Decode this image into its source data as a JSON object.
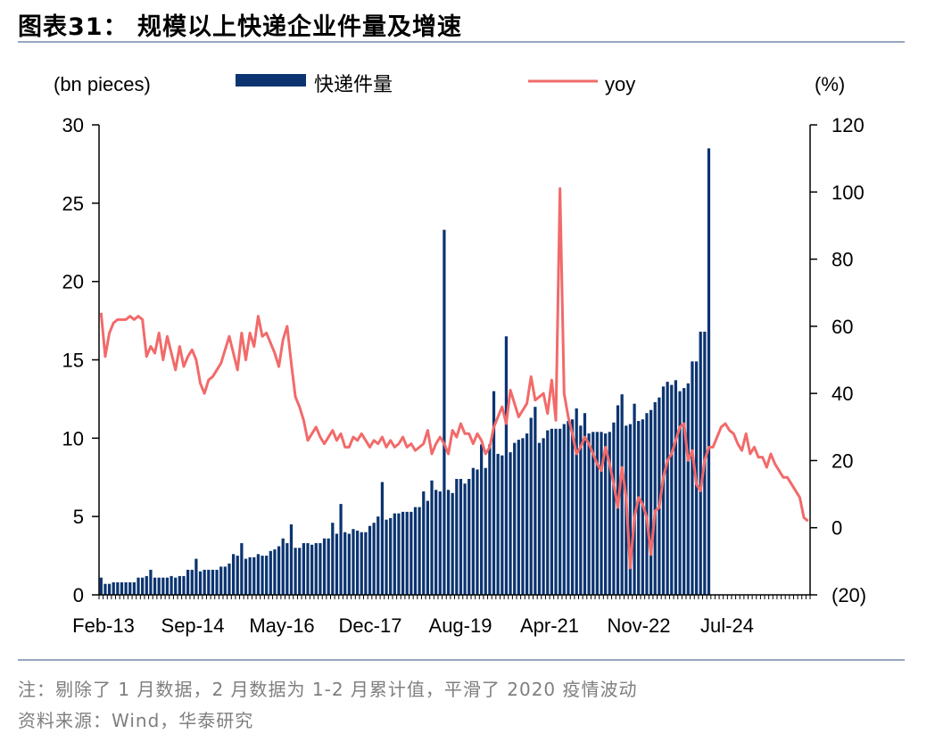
{
  "title": "图表31：  规模以上快递企业件量及增速",
  "note": "注：剔除了 1 月数据，2 月数据为 1-2 月累计值，平滑了 2020 疫情波动",
  "source": "资料来源：Wind，华泰研究",
  "colors": {
    "bar": "#0B3470",
    "line": "#F26A6A",
    "rule": "#98A6BF"
  },
  "chart_data": {
    "type": "bar+line",
    "left_unit": "(bn pieces)",
    "right_unit": "(%)",
    "legend": {
      "bar": "快递件量",
      "line": "yoy"
    },
    "legend_position": "top",
    "y_left": {
      "min": 0,
      "max": 30,
      "ticks": [
        "0",
        "5",
        "10",
        "15",
        "20",
        "25",
        "30"
      ]
    },
    "y_right": {
      "min": -20,
      "max": 120,
      "ticks": [
        "(20)",
        "0",
        "20",
        "40",
        "60",
        "80",
        "100",
        "120"
      ]
    },
    "x_tick_labels": [
      "Feb-13",
      "Sep-14",
      "May-16",
      "Dec-17",
      "Aug-19",
      "Apr-21",
      "Nov-22",
      "Jul-24"
    ],
    "x_start": "2013-02",
    "months_per_point": 1,
    "series": [
      {
        "name": "快递件量",
        "axis": "left",
        "values": [
          1.1,
          0.7,
          0.7,
          0.8,
          0.8,
          0.8,
          0.8,
          0.8,
          0.8,
          1.1,
          1.1,
          1.2,
          1.6,
          1.1,
          1.1,
          1.1,
          1.1,
          1.2,
          1.1,
          1.2,
          1.2,
          1.6,
          1.6,
          2.3,
          1.5,
          1.6,
          1.6,
          1.6,
          1.6,
          1.8,
          1.8,
          2.0,
          2.6,
          2.5,
          3.3,
          2.3,
          2.4,
          2.4,
          2.6,
          2.5,
          2.5,
          2.8,
          2.9,
          3.1,
          3.6,
          3.3,
          4.5,
          3.0,
          3.0,
          3.3,
          3.3,
          3.2,
          3.3,
          3.3,
          3.6,
          3.6,
          4.6,
          3.9,
          5.8,
          4.0,
          3.9,
          4.2,
          4.1,
          4.0,
          4.0,
          4.4,
          4.6,
          5.0,
          7.2,
          4.8,
          4.9,
          5.2,
          5.2,
          5.3,
          5.3,
          5.3,
          5.6,
          5.6,
          6.6,
          6.0,
          7.3,
          6.7,
          6.6,
          6.5,
          6.7,
          6.5,
          7.4,
          7.4,
          7.1,
          7.4,
          8.1,
          8.0,
          9.6,
          8.1,
          9.6,
          13.0,
          9.0,
          8.9,
          9.4,
          9.1,
          9.7,
          9.9,
          10.0,
          10.3,
          11.3,
          12.0,
          9.7,
          10.0,
          10.5,
          10.6,
          10.6,
          10.6,
          10.9,
          11.1,
          11.2,
          11.9,
          10.8,
          11.6,
          10.3,
          10.4,
          10.4,
          10.4,
          10.3,
          10.4,
          11.0,
          12.1,
          12.8,
          10.8,
          10.9,
          12.2,
          11.1,
          11.2,
          11.6,
          11.8,
          12.3,
          12.6,
          13.3,
          13.6,
          13.4,
          13.7,
          13.0,
          13.2,
          13.5,
          14.9,
          14.9,
          16.8,
          16.8,
          28.5
        ],
        "overrides": [
          {
            "label": "Jan-20",
            "value": 23.3
          },
          {
            "label": "Apr-21",
            "value": 16.5
          }
        ]
      },
      {
        "name": "yoy",
        "axis": "right",
        "values": [
          64,
          51,
          58,
          61,
          62,
          62,
          62,
          63,
          62,
          63,
          62,
          51,
          54,
          52,
          58,
          50,
          57,
          52,
          47,
          54,
          48,
          51,
          53,
          50,
          43,
          40,
          44,
          45,
          47,
          49,
          53,
          57,
          52,
          47,
          58,
          50,
          58,
          54,
          63,
          57,
          58,
          55,
          52,
          48,
          56,
          60,
          49,
          39,
          36,
          32,
          26,
          28,
          30,
          27,
          25,
          27,
          29,
          26,
          28,
          24,
          24,
          27,
          26,
          28,
          26,
          24,
          26,
          25,
          27,
          24,
          26,
          24,
          25,
          27,
          24,
          25,
          23,
          24,
          25,
          29,
          22,
          25,
          27,
          25,
          22,
          29,
          27,
          31,
          28,
          28,
          25,
          28,
          26,
          22,
          24,
          30,
          33,
          36,
          31,
          41,
          37,
          33,
          35,
          37,
          45,
          38,
          39,
          40,
          34,
          44,
          32,
          101,
          40,
          33,
          28,
          22,
          24,
          27,
          25,
          22,
          19,
          17,
          24,
          19,
          13,
          6,
          18,
          9,
          -12,
          3,
          9,
          7,
          3,
          -8,
          5,
          6,
          15,
          20,
          22,
          26,
          30,
          31,
          20,
          23,
          13,
          11,
          20,
          24,
          24,
          27,
          30,
          31,
          29,
          28,
          25,
          23,
          28,
          22,
          24,
          21,
          21,
          18,
          22,
          19,
          17,
          15,
          15,
          13,
          11,
          9,
          3,
          2
        ]
      }
    ]
  }
}
